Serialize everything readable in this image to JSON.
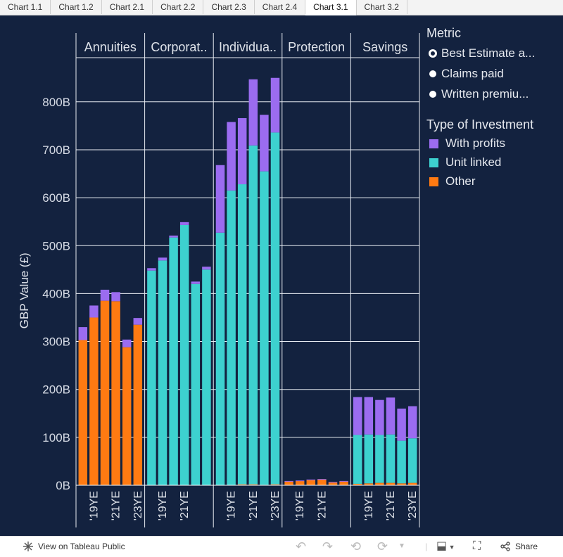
{
  "tabs": [
    "Chart 1.1",
    "Chart 1.2",
    "Chart 2.1",
    "Chart 2.2",
    "Chart 2.3",
    "Chart 2.4",
    "Chart 3.1",
    "Chart 3.2"
  ],
  "active_tab": 6,
  "legend": {
    "metric_title": "Metric",
    "metric_options": [
      "Best Estimate a...",
      "Claims paid",
      "Written premiu..."
    ],
    "metric_selected": 0,
    "type_title": "Type of Investment",
    "type_items": [
      {
        "label": "With profits",
        "color": "#9b6cf0"
      },
      {
        "label": "Unit linked",
        "color": "#3dd1cf"
      },
      {
        "label": "Other",
        "color": "#ff7a12"
      }
    ]
  },
  "footer": {
    "view_label": "View on Tableau Public",
    "share_label": "Share"
  },
  "chart_data": {
    "type": "bar",
    "stacked": true,
    "ylabel": "GBP Value (£)",
    "y_ticks": [
      "0B",
      "100B",
      "200B",
      "300B",
      "400B",
      "500B",
      "600B",
      "700B",
      "800B"
    ],
    "ylim": [
      0,
      890
    ],
    "unit": "B",
    "panels": [
      {
        "name": "Annuities",
        "x_labels": [
          "'19YE",
          "'21YE",
          "'23YE"
        ],
        "other": [
          303,
          350,
          385,
          384,
          288,
          335
        ],
        "unit_linked": [
          0,
          0,
          0,
          0,
          0,
          0
        ],
        "with_profits": [
          27,
          25,
          23,
          19,
          16,
          14
        ]
      },
      {
        "name": "Corporat..",
        "x_labels": [
          "'19YE",
          "'21YE"
        ],
        "other": [
          0,
          0,
          0,
          0,
          0,
          0
        ],
        "unit_linked": [
          448,
          469,
          517,
          543,
          420,
          450
        ],
        "with_profits": [
          5,
          6,
          4,
          6,
          5,
          6
        ]
      },
      {
        "name": "Individua..",
        "x_labels": [
          "'19YE",
          "'21YE",
          "'23YE"
        ],
        "other": [
          0,
          0,
          2,
          2,
          1,
          2
        ],
        "unit_linked": [
          527,
          615,
          626,
          707,
          654,
          734
        ],
        "with_profits": [
          141,
          143,
          138,
          138,
          118,
          114
        ]
      },
      {
        "name": "Protection",
        "x_labels": [
          "'19YE",
          "'21YE"
        ],
        "other": [
          8,
          9,
          11,
          12,
          6,
          8
        ],
        "unit_linked": [
          0,
          0,
          0,
          0,
          0,
          0
        ],
        "with_profits": [
          1,
          1,
          1,
          1,
          1,
          1
        ]
      },
      {
        "name": "Savings",
        "x_labels": [
          "'19YE",
          "'21YE",
          "'23YE"
        ],
        "other": [
          3,
          4,
          5,
          5,
          4,
          5
        ],
        "unit_linked": [
          102,
          102,
          100,
          101,
          89,
          93
        ],
        "with_profits": [
          79,
          78,
          73,
          77,
          67,
          67
        ]
      }
    ]
  }
}
